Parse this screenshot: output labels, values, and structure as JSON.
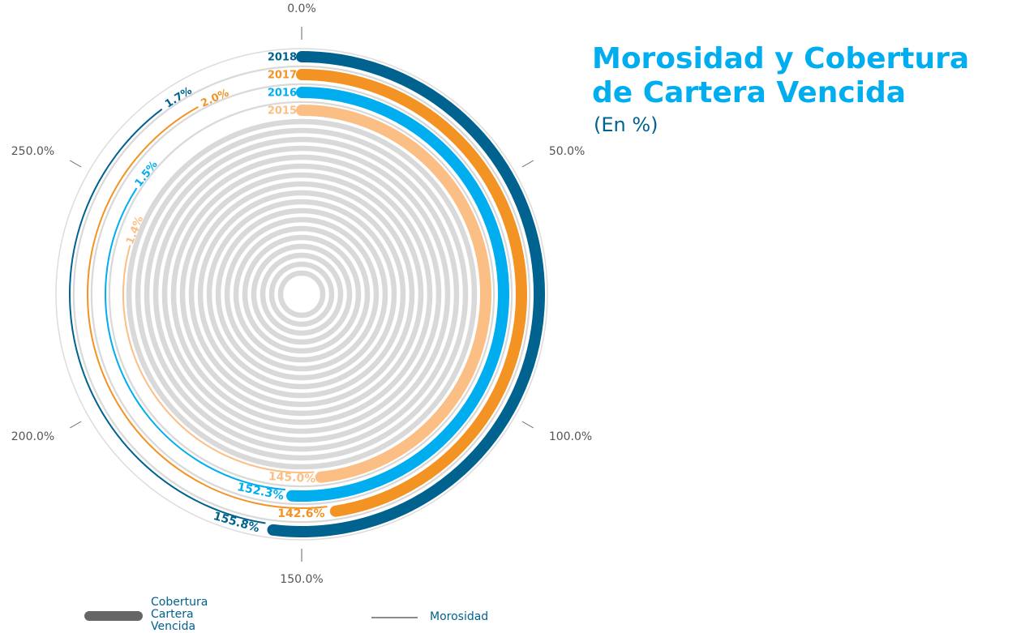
{
  "chart_data": {
    "type": "radial_bar",
    "title": "Morosidad y Cobertura de Cartera Vencida",
    "subtitle": "(En %)",
    "categories": [
      "2018",
      "2017",
      "2016",
      "2015"
    ],
    "colors": [
      "#00628f",
      "#f39323",
      "#00aeef",
      "#fbbf85"
    ],
    "series": [
      {
        "name": "Cobertura Cartera Vencida",
        "color": "#666666",
        "values": [
          155.8,
          142.6,
          152.3,
          145.0
        ],
        "value_labels": [
          "155.8%",
          "142.6%",
          "152.3%",
          "145.0%"
        ]
      },
      {
        "name": "Morosidad",
        "color": "#666666",
        "axis": "y2",
        "values": [
          1.7,
          2.0,
          1.5,
          1.4
        ],
        "value_labels": [
          "1.7%",
          "2.0%",
          "1.5%",
          "1.4%"
        ]
      }
    ],
    "ylim": [
      0,
      300
    ],
    "yticks": [
      {
        "value": 0,
        "label": "0.0%"
      },
      {
        "value": 50,
        "label": "50.0%"
      },
      {
        "value": 100,
        "label": "100.0%"
      },
      {
        "value": 150,
        "label": "150.0%"
      },
      {
        "value": 200,
        "label": "200.0%"
      },
      {
        "value": 250,
        "label": "250.0%"
      }
    ],
    "y2lim": [
      0,
      4.5
    ]
  }
}
